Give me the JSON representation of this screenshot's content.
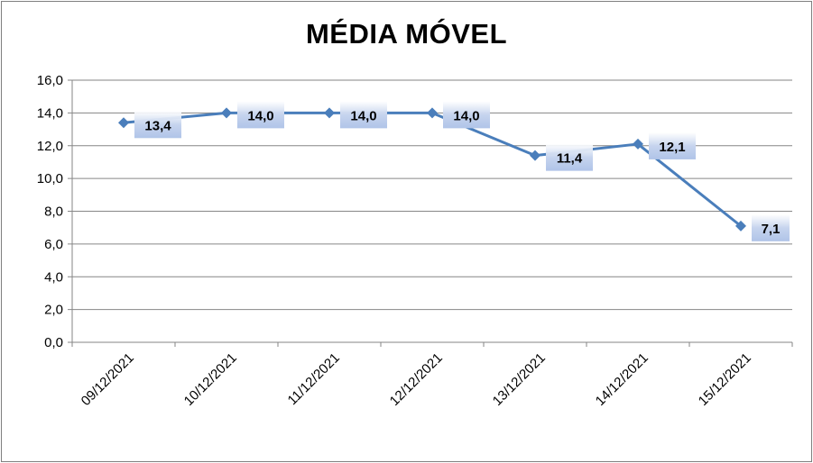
{
  "chart_data": {
    "type": "line",
    "title": "MÉDIA MÓVEL",
    "categories": [
      "09/12/2021",
      "10/12/2021",
      "11/12/2021",
      "12/12/2021",
      "13/12/2021",
      "14/12/2021",
      "15/12/2021"
    ],
    "series": [
      {
        "values": [
          13.4,
          14.0,
          14.0,
          14.0,
          11.4,
          12.1,
          7.1
        ]
      }
    ],
    "data_labels": [
      "13,4",
      "14,0",
      "14,0",
      "14,0",
      "11,4",
      "12,1",
      "7,1"
    ],
    "ylim": [
      0,
      16
    ],
    "yticks": [
      "0,0",
      "2,0",
      "4,0",
      "6,0",
      "8,0",
      "10,0",
      "12,0",
      "14,0",
      "16,0"
    ],
    "grid": true,
    "legend": "none",
    "colors": {
      "line": "#4a7ebb",
      "grid": "#868686",
      "label_box": "#c6d4ee"
    }
  }
}
